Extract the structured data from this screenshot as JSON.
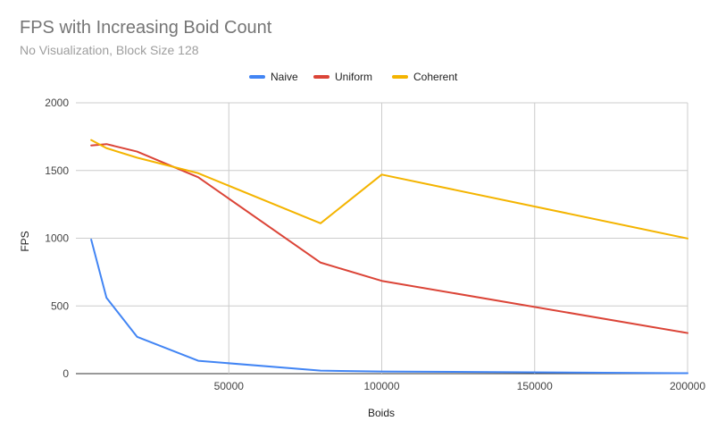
{
  "chart_data": {
    "type": "line",
    "title": "FPS with Increasing Boid Count",
    "subtitle": "No Visualization, Block Size 128",
    "xlabel": "Boids",
    "ylabel": "FPS",
    "xlim": [
      0,
      200000
    ],
    "ylim": [
      0,
      2000
    ],
    "xticks": [
      "50000",
      "100000",
      "150000",
      "200000"
    ],
    "yticks": [
      "0",
      "500",
      "1000",
      "1500",
      "2000"
    ],
    "grid": true,
    "legend_position": "top",
    "x": [
      5000,
      10000,
      20000,
      40000,
      80000,
      100000,
      200000
    ],
    "series": [
      {
        "name": "Naive",
        "color": "#4285f4",
        "values": [
          990,
          560,
          272,
          95,
          22,
          16,
          3
        ]
      },
      {
        "name": "Uniform",
        "color": "#db4437",
        "values": [
          1685,
          1695,
          1640,
          1450,
          820,
          685,
          300
        ]
      },
      {
        "name": "Coherent",
        "color": "#f4b400",
        "values": [
          1725,
          1665,
          1595,
          1480,
          1110,
          1470,
          998
        ]
      }
    ]
  }
}
